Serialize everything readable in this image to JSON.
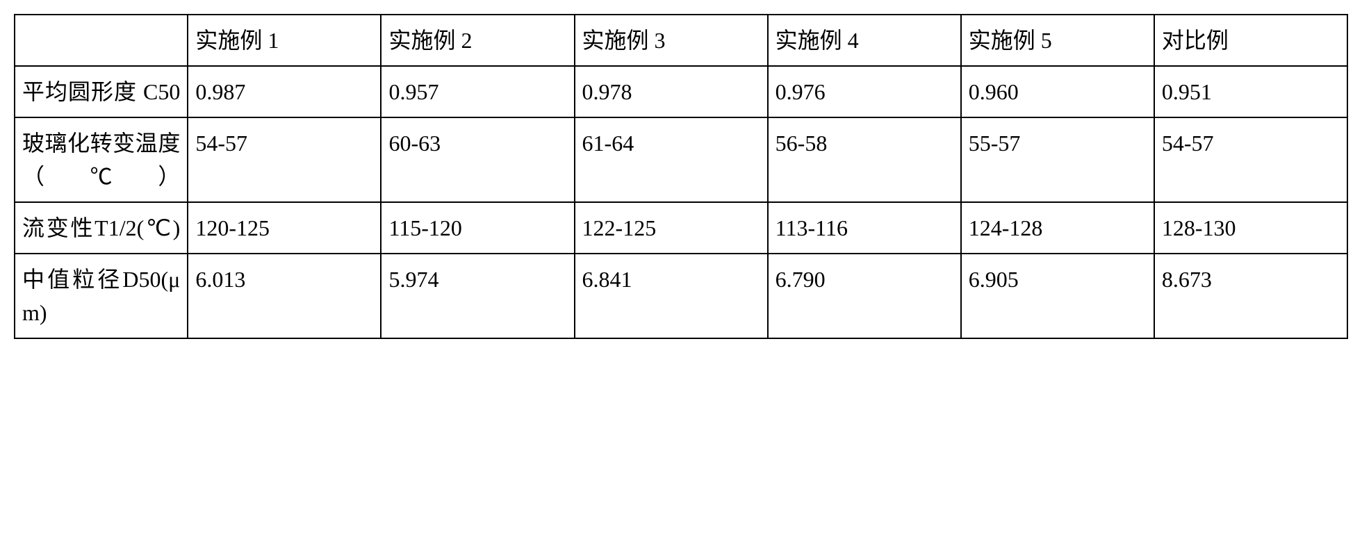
{
  "table": {
    "columns": [
      "",
      "实施例 1",
      "实施例 2",
      "实施例 3",
      "实施例 4",
      "实施例 5",
      "对比例"
    ],
    "rows": [
      {
        "header": "平均圆形度 C50",
        "values": [
          "0.987",
          "0.957",
          "0.978",
          "0.976",
          "0.960",
          "0.951"
        ]
      },
      {
        "header": "玻璃化转变温度（℃）",
        "values": [
          "54-57",
          "60-63",
          "61-64",
          "56-58",
          "55-57",
          "54-57"
        ]
      },
      {
        "header": "流变性T1/2(℃)",
        "values": [
          "120-125",
          "115-120",
          "122-125",
          "113-116",
          "124-128",
          "128-130"
        ]
      },
      {
        "header": "中值粒径D50(μm)",
        "values": [
          "6.013",
          "5.974",
          "6.841",
          "6.790",
          "6.905",
          "8.673"
        ]
      }
    ],
    "border_color": "#000000",
    "background_color": "#ffffff",
    "text_color": "#000000",
    "font_size": 32,
    "font_family": "SimSun"
  }
}
